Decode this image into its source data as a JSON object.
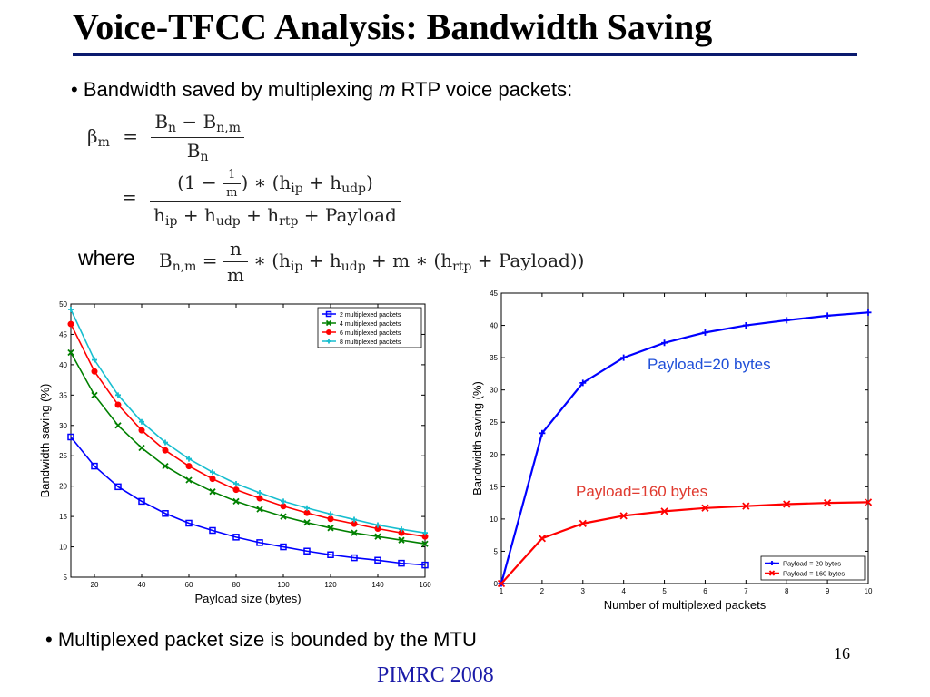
{
  "slide": {
    "title": "Voice-TFCC Analysis: Bandwidth Saving",
    "bullet1_pre": "• Bandwidth saved by multiplexing ",
    "bullet1_m": "m",
    "bullet1_post": " RTP voice packets:",
    "where_label": "where",
    "bullet2": "• Multiplexed packet size is bounded by the MTU",
    "page_number": "16",
    "footer": "PIMRC 2008"
  },
  "formula": {
    "beta": "β",
    "m": "m",
    "equals": "=",
    "eq1_num": "B",
    "n": "n",
    "nm": "n,m",
    "minus": " − ",
    "eq2_num_a": "(1 − ",
    "one": "1",
    "eq2_num_b": ") ∗ (h",
    "ip": "ip",
    "plus_h": " + h",
    "udp": "udp",
    "close": ")",
    "rtp": "rtp",
    "plus_payload": " + Payload",
    "B_def_a": "B",
    "B_def_b": " = ",
    "B_def_c": " ∗ (h",
    "B_def_d": " + m ∗ (h",
    "B_def_e": " + Payload))"
  },
  "chart_data": [
    {
      "type": "line",
      "xlabel": "Payload size (bytes)",
      "ylabel": "Bandwidth saving (%)",
      "xlim": [
        10,
        160
      ],
      "ylim": [
        5,
        50
      ],
      "xticks": [
        20,
        40,
        60,
        80,
        100,
        120,
        140,
        160
      ],
      "yticks": [
        5,
        10,
        15,
        20,
        25,
        30,
        35,
        40,
        45,
        50
      ],
      "grid": false,
      "legend_position": "top-right",
      "x": [
        10,
        20,
        30,
        40,
        50,
        60,
        70,
        80,
        90,
        100,
        110,
        120,
        130,
        140,
        150,
        160
      ],
      "series": [
        {
          "name": "2 multiplexed packets",
          "color": "#0000ff",
          "marker": "square",
          "values": [
            28.1,
            23.3,
            19.9,
            17.5,
            15.5,
            13.9,
            12.7,
            11.6,
            10.7,
            10.0,
            9.3,
            8.7,
            8.2,
            7.8,
            7.3,
            7.0
          ]
        },
        {
          "name": "4 multiplexed packets",
          "color": "#008000",
          "marker": "x",
          "values": [
            42.0,
            35.0,
            30.0,
            26.3,
            23.3,
            21.0,
            19.1,
            17.5,
            16.2,
            15.0,
            14.0,
            13.1,
            12.3,
            11.7,
            11.1,
            10.5
          ]
        },
        {
          "name": "6 multiplexed packets",
          "color": "#ff0000",
          "marker": "circle",
          "values": [
            46.7,
            38.9,
            33.4,
            29.2,
            25.9,
            23.3,
            21.2,
            19.4,
            18.0,
            16.7,
            15.6,
            14.6,
            13.8,
            13.0,
            12.3,
            11.7
          ]
        },
        {
          "name": "8 multiplexed packets",
          "color": "#17becf",
          "marker": "plus",
          "values": [
            49.1,
            40.8,
            35.0,
            30.6,
            27.2,
            24.5,
            22.3,
            20.4,
            18.9,
            17.5,
            16.4,
            15.4,
            14.5,
            13.6,
            12.9,
            12.3
          ]
        }
      ]
    },
    {
      "type": "line",
      "xlabel": "Number of multiplexed packets",
      "ylabel": "Bandwidth saving (%)",
      "xlim": [
        1,
        10
      ],
      "ylim": [
        0,
        45
      ],
      "xticks": [
        1,
        2,
        3,
        4,
        5,
        6,
        7,
        8,
        9,
        10
      ],
      "yticks": [
        0,
        5,
        10,
        15,
        20,
        25,
        30,
        35,
        40,
        45
      ],
      "grid": false,
      "legend_position": "bottom-right",
      "x": [
        1,
        2,
        3,
        4,
        5,
        6,
        7,
        8,
        9,
        10
      ],
      "series": [
        {
          "name": "Payload = 20 bytes",
          "color": "#0000ff",
          "marker": "plus",
          "values": [
            0,
            23.3,
            31.1,
            35.0,
            37.3,
            38.9,
            40.0,
            40.8,
            41.5,
            42.0
          ]
        },
        {
          "name": "Payload = 160 bytes",
          "color": "#ff0000",
          "marker": "x",
          "values": [
            0,
            7.0,
            9.3,
            10.5,
            11.2,
            11.7,
            12.0,
            12.3,
            12.5,
            12.6
          ]
        }
      ],
      "annotations": [
        {
          "text": "Payload=20 bytes",
          "color": "#1f4fd8"
        },
        {
          "text": "Payload=160 bytes",
          "color": "#e03a2f"
        }
      ]
    }
  ]
}
